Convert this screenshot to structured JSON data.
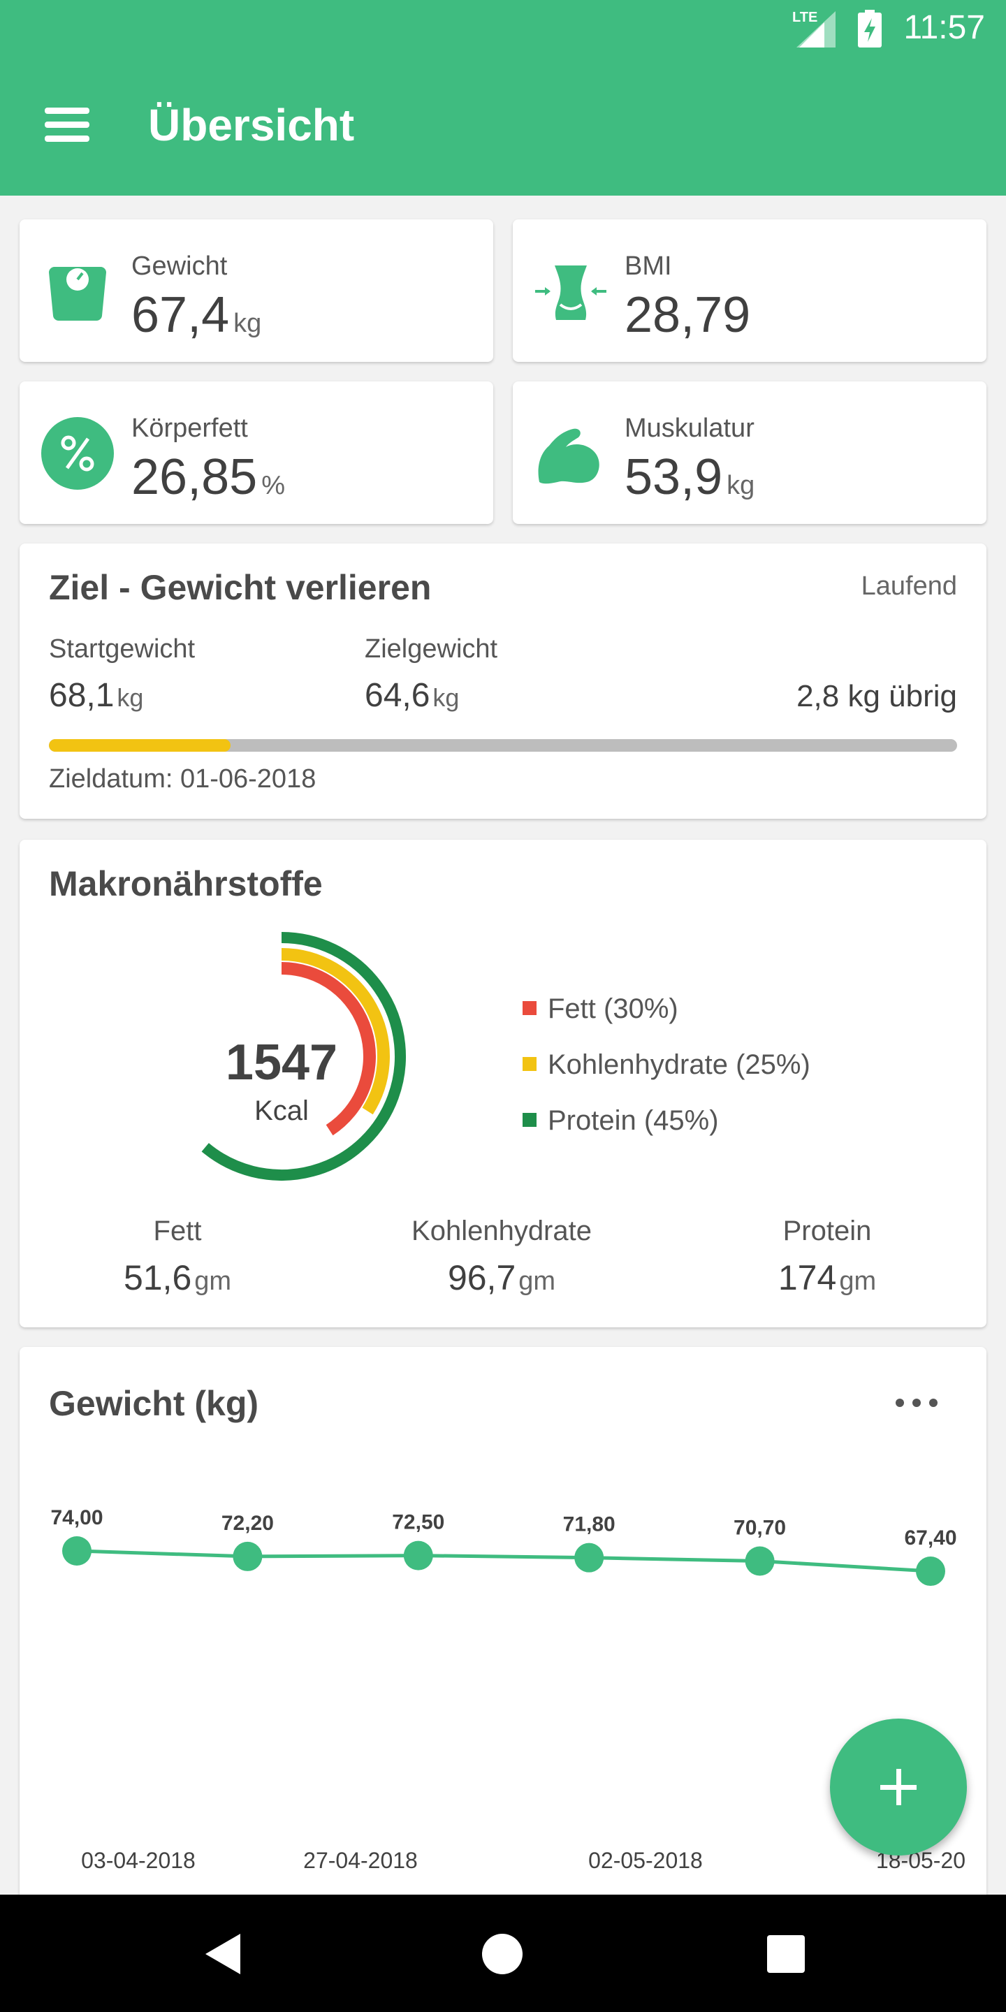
{
  "status_bar": {
    "time": "11:57",
    "network": "LTE"
  },
  "app_bar": {
    "title": "Übersicht"
  },
  "metrics": [
    {
      "label": "Gewicht",
      "value": "67,4",
      "unit": "kg",
      "icon": "scale-icon"
    },
    {
      "label": "BMI",
      "value": "28,79",
      "unit": "",
      "icon": "body-icon"
    },
    {
      "label": "Körperfett",
      "value": "26,85",
      "unit": "%",
      "icon": "percent-icon"
    },
    {
      "label": "Muskulatur",
      "value": "53,9",
      "unit": "kg",
      "icon": "muscle-icon"
    }
  ],
  "goal": {
    "title": "Ziel - Gewicht verlieren",
    "status": "Laufend",
    "start_label": "Startgewicht",
    "start_value": "68,1",
    "start_unit": "kg",
    "target_label": "Zielgewicht",
    "target_value": "64,6",
    "target_unit": "kg",
    "remaining": "2,8 kg übrig",
    "progress": 0.2,
    "progress_color": "#f2c312",
    "date": "Zieldatum: 01-06-2018"
  },
  "macros": {
    "title": "Makronährstoffe",
    "kcal": "1547",
    "kcal_unit": "Kcal",
    "legend": [
      {
        "label": "Fett (30%)",
        "color": "#ea4b3c",
        "share": 0.3
      },
      {
        "label": "Kohlenhydrate (25%)",
        "color": "#f2c312",
        "share": 0.25
      },
      {
        "label": "Protein (45%)",
        "color": "#1e8e4a",
        "share": 0.45
      }
    ],
    "fat_label": "Fett",
    "fat_value": "51,6",
    "carbs_label": "Kohlenhydrate",
    "carbs_value": "96,7",
    "protein_label": "Protein",
    "protein_value": "174",
    "unit": "gm"
  },
  "weight_chart": {
    "title": "Gewicht (kg)",
    "fab_label": "+"
  },
  "chart_data": {
    "type": "line",
    "title": "Gewicht (kg)",
    "values": [
      74.0,
      72.2,
      72.5,
      71.8,
      70.7,
      67.4
    ],
    "value_labels": [
      "74,00",
      "72,20",
      "72,50",
      "71,80",
      "70,70",
      "67,40"
    ],
    "x_tick_labels": [
      "03-04-2018",
      "27-04-2018",
      "02-05-2018",
      "18-05-20"
    ],
    "color": "#3fbc80",
    "grid": false
  }
}
